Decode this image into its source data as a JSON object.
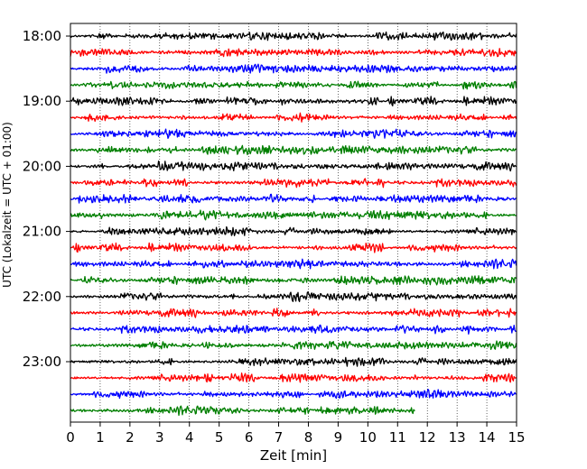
{
  "chart_data": {
    "type": "line",
    "title": "",
    "xlabel": "Zeit  [min]",
    "ylabel": "UTC (Lokalzeit = UTC + 01:00)",
    "xlim": [
      0,
      15
    ],
    "x_ticks": [
      "0",
      "1",
      "2",
      "3",
      "4",
      "5",
      "6",
      "7",
      "8",
      "9",
      "10",
      "11",
      "12",
      "13",
      "14",
      "15"
    ],
    "y_ticks": [
      "18:00",
      "19:00",
      "20:00",
      "21:00",
      "22:00",
      "23:00"
    ],
    "grid": "vertical dotted at each minute",
    "traces_per_hour": 4,
    "trace_interval_minutes": 15,
    "first_trace": "18:00",
    "trace_count": 24,
    "last_trace_end_minute": 11.6,
    "colors_cycle": [
      "#000000",
      "#ff0000",
      "#0000ff",
      "#007f00"
    ]
  }
}
